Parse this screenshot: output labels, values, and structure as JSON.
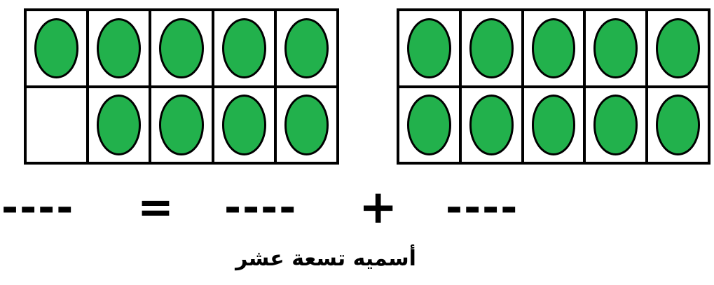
{
  "colors": {
    "counter_fill": "#22b14c",
    "grid_lines": "#000000",
    "background": "#ffffff"
  },
  "ten_frames": [
    {
      "name": "left",
      "rows": [
        [
          true,
          true,
          true,
          true,
          true
        ],
        [
          false,
          true,
          true,
          true,
          true
        ]
      ],
      "filled_count": 9
    },
    {
      "name": "right",
      "rows": [
        [
          true,
          true,
          true,
          true,
          true
        ],
        [
          true,
          true,
          true,
          true,
          true
        ]
      ],
      "filled_count": 10
    }
  ],
  "equation": {
    "total_blank": "----",
    "equals": "=",
    "addend_a_blank": "----",
    "plus": "+",
    "addend_b_blank": "----"
  },
  "caption": "أسميه تسعة عشر"
}
